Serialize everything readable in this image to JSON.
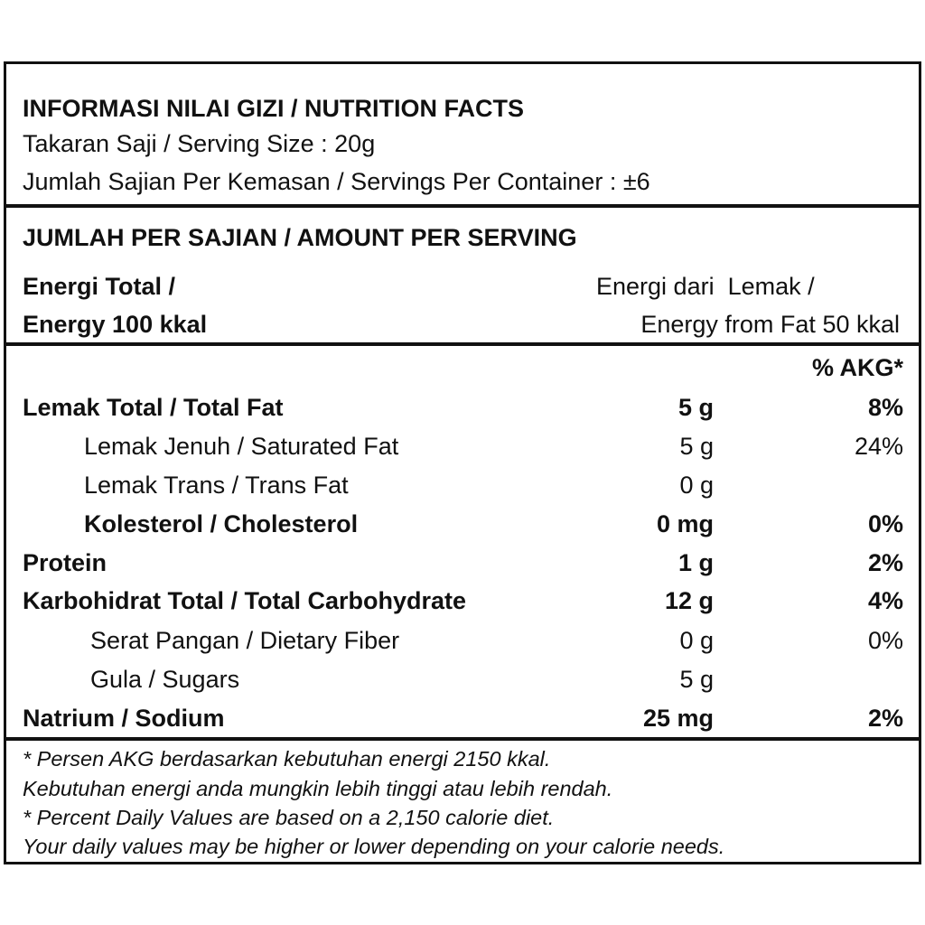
{
  "header": {
    "title": "INFORMASI NILAI GIZI / NUTRITION FACTS",
    "serving_size": "Takaran Saji / Serving Size : 20g",
    "servings_per_container": "Jumlah Sajian Per Kemasan / Servings Per Container : ±6"
  },
  "amount_section": {
    "title": "JUMLAH PER SAJIAN / AMOUNT PER SERVING",
    "energy_total": [
      "Energi Total /",
      "Energy 100 kkal"
    ],
    "energy_from_fat": [
      "Energi dari  Lemak /",
      "Energy from Fat 50 kkal"
    ]
  },
  "table": {
    "akg_header": "% AKG*",
    "rows": [
      {
        "name": "Lemak Total / Total Fat",
        "amount": "5 g",
        "akg": "8%"
      },
      {
        "name": "Lemak Jenuh / Saturated Fat",
        "amount": "5 g",
        "akg": "24%"
      },
      {
        "name": "Lemak Trans / Trans Fat",
        "amount": "0 g"
      },
      {
        "name": "Kolesterol / Cholesterol",
        "amount": "0 mg",
        "akg": "0%"
      },
      {
        "name": "Protein",
        "amount": "1 g",
        "akg": "2%"
      },
      {
        "name": "Karbohidrat Total / Total Carbohydrate",
        "amount": "12 g",
        "akg": "4%"
      },
      {
        "name": "Serat Pangan / Dietary Fiber",
        "amount": "0 g",
        "akg": "0%"
      },
      {
        "name": "Gula / Sugars",
        "amount": "5 g"
      },
      {
        "name": "Natrium / Sodium",
        "amount": "25 mg",
        "akg": "2%"
      }
    ]
  },
  "footnote": [
    "* Persen AKG berdasarkan kebutuhan energi 2150 kkal.",
    "Kebutuhan energi anda mungkin lebih tinggi atau lebih rendah.",
    "* Percent Daily Values are based on a 2,150 calorie diet.",
    "Your daily values may be higher or lower depending on your calorie needs."
  ]
}
